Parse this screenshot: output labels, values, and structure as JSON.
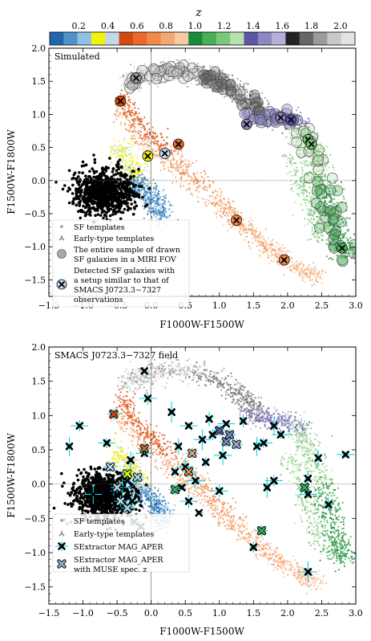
{
  "colorbar": {
    "label": "z",
    "ticks": [
      "0.2",
      "0.4",
      "0.6",
      "0.8",
      "1.0",
      "1.2",
      "1.4",
      "1.6",
      "1.8",
      "2.0"
    ],
    "tick_values": [
      0.2,
      0.4,
      0.6,
      0.8,
      1.0,
      1.2,
      1.4,
      1.6,
      1.8,
      2.0
    ],
    "range": [
      0.0,
      2.1
    ],
    "colors": [
      "#2166ac",
      "#4f93c9",
      "#8fc1e3",
      "#f3f20a",
      "#c3d7ea",
      "#d34a10",
      "#e9692b",
      "#f08a4b",
      "#f5a875",
      "#f8c9a3",
      "#1b8a3a",
      "#4aae58",
      "#7bc77a",
      "#b7e1ad",
      "#5e55a3",
      "#8d87c2",
      "#b4b0d8",
      "#222222",
      "#666666",
      "#9a9a9a",
      "#c8c8c8",
      "#e3e3e3"
    ]
  },
  "chart_data": [
    {
      "type": "scatter",
      "panel_label": "Simulated",
      "xlabel": "F1000W-F1500W",
      "ylabel": "F1500W-F1800W",
      "xlim": [
        -1.5,
        3.0
      ],
      "ylim": [
        -1.75,
        2.0
      ],
      "x_ticks": [
        "−1.5",
        "−1.0",
        "−0.5",
        "0.0",
        "0.5",
        "1.0",
        "1.5",
        "2.0",
        "2.5",
        "3.0"
      ],
      "y_ticks": [
        "−1.5",
        "−1.0",
        "−0.5",
        "0.0",
        "0.5",
        "1.0",
        "1.5",
        "2.0"
      ],
      "legend": {
        "position": "lower-left",
        "entries": [
          "SF templates",
          "Early-type templates",
          "The entire sample of drawn SF galaxies in a MIRI FOV",
          "Detected SF galaxies with a setup similar to that of SMACS J0723.3−7327 observations"
        ],
        "lines": [
          [
            "SF templates"
          ],
          [
            "Early-type templates"
          ],
          [
            "The entire sample of drawn",
            "SF galaxies in a MIRI FOV"
          ],
          [
            "Detected SF galaxies with",
            "a setup similar to that of",
            "SMACS J0723.3−7327",
            "observations"
          ]
        ]
      },
      "detected": [
        {
          "x": -0.45,
          "y": 1.2,
          "z": 0.55
        },
        {
          "x": -0.22,
          "y": 1.55,
          "z": 1.9
        },
        {
          "x": -0.05,
          "y": 0.37,
          "z": 0.3
        },
        {
          "x": 0.2,
          "y": 0.41,
          "z": 0.45
        },
        {
          "x": 0.4,
          "y": 0.55,
          "z": 0.6
        },
        {
          "x": 1.25,
          "y": -0.6,
          "z": 0.75
        },
        {
          "x": 1.95,
          "y": -1.2,
          "z": 0.7
        },
        {
          "x": 1.4,
          "y": 0.85,
          "z": 1.5
        },
        {
          "x": 1.9,
          "y": 0.95,
          "z": 1.45
        },
        {
          "x": 2.05,
          "y": 0.92,
          "z": 1.4
        },
        {
          "x": 2.3,
          "y": 0.62,
          "z": 1.2
        },
        {
          "x": 2.35,
          "y": 0.55,
          "z": 1.15
        },
        {
          "x": 2.8,
          "y": -1.02,
          "z": 1.05
        }
      ]
    },
    {
      "type": "scatter",
      "panel_label": "SMACS J0723.3−7327 field",
      "xlabel": "F1000W-F1500W",
      "ylabel": "F1500W-F1800W",
      "xlim": [
        -1.5,
        3.0
      ],
      "ylim": [
        -1.75,
        2.0
      ],
      "x_ticks": [
        "−1.5",
        "−1.0",
        "−0.5",
        "0.0",
        "0.5",
        "1.0",
        "1.5",
        "2.0",
        "2.5",
        "3.0"
      ],
      "y_ticks": [
        "−1.5",
        "−1.0",
        "−0.5",
        "0.0",
        "0.5",
        "1.0",
        "1.5",
        "2.0"
      ],
      "legend": {
        "position": "lower-left",
        "entries": [
          "SF templates",
          "Early-type templates",
          "SExtractor MAG_APER",
          "SExtractor MAG_APER with MUSE spec. z"
        ],
        "lines": [
          [
            "SF templates"
          ],
          [
            "Early-type templates"
          ],
          [
            "SExtractor MAG_APER"
          ],
          [
            "SExtractor MAG_APER",
            "with MUSE spec. z"
          ]
        ]
      },
      "sextractor": [
        {
          "x": -0.1,
          "y": 1.65
        },
        {
          "x": -0.05,
          "y": 1.25
        },
        {
          "x": 0.3,
          "y": 1.05
        },
        {
          "x": -1.05,
          "y": 0.85
        },
        {
          "x": -1.2,
          "y": 0.55
        },
        {
          "x": -0.65,
          "y": 0.6
        },
        {
          "x": -0.3,
          "y": 0.35
        },
        {
          "x": -0.1,
          "y": 0.45
        },
        {
          "x": 0.4,
          "y": 0.55
        },
        {
          "x": 0.55,
          "y": 0.85
        },
        {
          "x": 0.85,
          "y": 0.95
        },
        {
          "x": 1.1,
          "y": 0.88
        },
        {
          "x": 1.35,
          "y": 0.92
        },
        {
          "x": 0.75,
          "y": 0.65
        },
        {
          "x": 0.9,
          "y": 0.72
        },
        {
          "x": 1.05,
          "y": 0.42
        },
        {
          "x": 0.8,
          "y": 0.32
        },
        {
          "x": 0.5,
          "y": 0.25
        },
        {
          "x": 0.35,
          "y": 0.18
        },
        {
          "x": 0.65,
          "y": 0.05
        },
        {
          "x": 0.45,
          "y": -0.05
        },
        {
          "x": 0.55,
          "y": -0.25
        },
        {
          "x": 0.7,
          "y": -0.42
        },
        {
          "x": 1.0,
          "y": -0.1
        },
        {
          "x": 1.7,
          "y": -0.05
        },
        {
          "x": 1.8,
          "y": 0.05
        },
        {
          "x": 1.55,
          "y": 0.55
        },
        {
          "x": 1.65,
          "y": 0.6
        },
        {
          "x": 1.8,
          "y": 0.85
        },
        {
          "x": 1.9,
          "y": 0.72
        },
        {
          "x": 2.45,
          "y": 0.38
        },
        {
          "x": 2.85,
          "y": 0.43
        },
        {
          "x": 2.3,
          "y": 0.08
        },
        {
          "x": 2.3,
          "y": -0.15
        },
        {
          "x": 2.6,
          "y": -0.3
        },
        {
          "x": 2.3,
          "y": -1.28
        },
        {
          "x": 1.5,
          "y": -0.92
        },
        {
          "x": -0.85,
          "y": -0.15
        },
        {
          "x": -0.55,
          "y": -0.1
        },
        {
          "x": -0.42,
          "y": -0.05
        },
        {
          "x": -0.35,
          "y": 0.05
        },
        {
          "x": -0.28,
          "y": -0.25
        },
        {
          "x": -0.45,
          "y": -0.35
        },
        {
          "x": -0.25,
          "y": -0.55
        },
        {
          "x": -0.15,
          "y": -0.62
        }
      ],
      "muse": [
        {
          "x": -0.55,
          "y": 1.02,
          "z": 0.55
        },
        {
          "x": -0.6,
          "y": 0.25,
          "z": 0.4
        },
        {
          "x": -0.35,
          "y": 0.15,
          "z": 0.38
        },
        {
          "x": -0.2,
          "y": 0.1,
          "z": 0.42
        },
        {
          "x": -0.5,
          "y": -0.05,
          "z": 0.4
        },
        {
          "x": -0.45,
          "y": -0.25,
          "z": 0.39
        },
        {
          "x": -0.35,
          "y": -0.35,
          "z": 0.41
        },
        {
          "x": -0.1,
          "y": 0.52,
          "z": 0.6
        },
        {
          "x": 0.55,
          "y": 0.18,
          "z": 0.7
        },
        {
          "x": 0.6,
          "y": 0.45,
          "z": 0.8
        },
        {
          "x": 0.35,
          "y": -0.08,
          "z": 1.05
        },
        {
          "x": 1.0,
          "y": 0.78,
          "z": 1.4
        },
        {
          "x": 1.1,
          "y": 0.62,
          "z": 1.5
        },
        {
          "x": 1.15,
          "y": 0.72,
          "z": 1.45
        },
        {
          "x": 1.25,
          "y": 0.58,
          "z": 1.6
        },
        {
          "x": 2.25,
          "y": -0.05,
          "z": 1.1
        },
        {
          "x": 1.62,
          "y": -0.68,
          "z": 1.05
        }
      ]
    }
  ]
}
